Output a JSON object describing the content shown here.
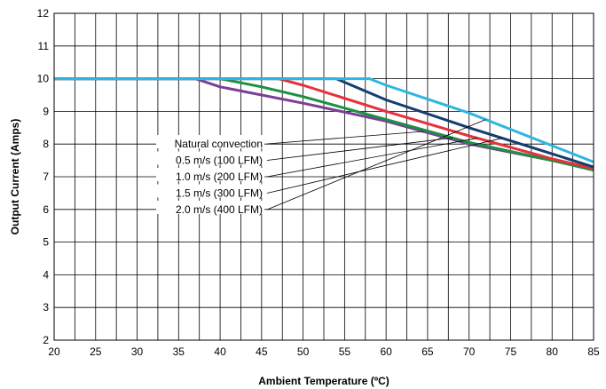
{
  "chart_data": {
    "type": "line",
    "title": "",
    "xlabel": "Ambient Temperature (ºC)",
    "ylabel": "Output Current (Amps)",
    "xlim": [
      20,
      85
    ],
    "ylim": [
      2,
      12
    ],
    "x_ticks": [
      20,
      25,
      30,
      35,
      40,
      45,
      50,
      55,
      60,
      65,
      70,
      75,
      80,
      85
    ],
    "y_ticks": [
      2,
      3,
      4,
      5,
      6,
      7,
      8,
      9,
      10,
      11,
      12
    ],
    "x_tick_labels": [
      "20",
      "25",
      "30",
      "35",
      "40",
      "45",
      "50",
      "55",
      "60",
      "65",
      "70",
      "75",
      "80",
      "85"
    ],
    "y_tick_labels": [
      "2",
      "3",
      "4",
      "5",
      "6",
      "7",
      "8",
      "9",
      "10",
      "11",
      "12"
    ],
    "grid": true,
    "legend_position": "none",
    "series": [
      {
        "name": "Natural convection",
        "color": "#7b3f98",
        "points": [
          [
            20,
            10
          ],
          [
            37,
            10
          ],
          [
            40,
            9.75
          ],
          [
            50,
            9.25
          ],
          [
            60,
            8.7
          ],
          [
            70,
            8.0
          ],
          [
            80,
            7.5
          ],
          [
            85,
            7.2
          ]
        ]
      },
      {
        "name": "0.5 m/s (100 LFM)",
        "color": "#1a9140",
        "points": [
          [
            20,
            10
          ],
          [
            40,
            10
          ],
          [
            45,
            9.75
          ],
          [
            50,
            9.45
          ],
          [
            60,
            8.75
          ],
          [
            70,
            8.05
          ],
          [
            80,
            7.5
          ],
          [
            85,
            7.2
          ]
        ]
      },
      {
        "name": "1.0 m/s (200 LFM)",
        "color": "#e8303c",
        "points": [
          [
            20,
            10
          ],
          [
            47,
            10
          ],
          [
            50,
            9.8
          ],
          [
            60,
            9.0
          ],
          [
            70,
            8.25
          ],
          [
            80,
            7.55
          ],
          [
            85,
            7.25
          ]
        ]
      },
      {
        "name": "1.5 m/s (300 LFM)",
        "color": "#153d6e",
        "points": [
          [
            20,
            10
          ],
          [
            54,
            10
          ],
          [
            60,
            9.35
          ],
          [
            70,
            8.5
          ],
          [
            80,
            7.7
          ],
          [
            85,
            7.3
          ]
        ]
      },
      {
        "name": "2.0 m/s (400 LFM)",
        "color": "#2fb6e0",
        "points": [
          [
            20,
            10
          ],
          [
            58,
            10
          ],
          [
            60,
            9.8
          ],
          [
            70,
            8.95
          ],
          [
            80,
            7.95
          ],
          [
            85,
            7.45
          ]
        ]
      }
    ],
    "annotations": [
      {
        "text": "Natural convection",
        "series": 0,
        "anchor_x": 64.5
      },
      {
        "text": "0.5 m/s (100 LFM)",
        "series": 1,
        "anchor_x": 68
      },
      {
        "text": "1.0 m/s (200 LFM)",
        "series": 2,
        "anchor_x": 71
      },
      {
        "text": "1.5 m/s (300 LFM)",
        "series": 3,
        "anchor_x": 74
      },
      {
        "text": "2.0 m/s (400 LFM)",
        "series": 4,
        "anchor_x": 72
      }
    ]
  }
}
